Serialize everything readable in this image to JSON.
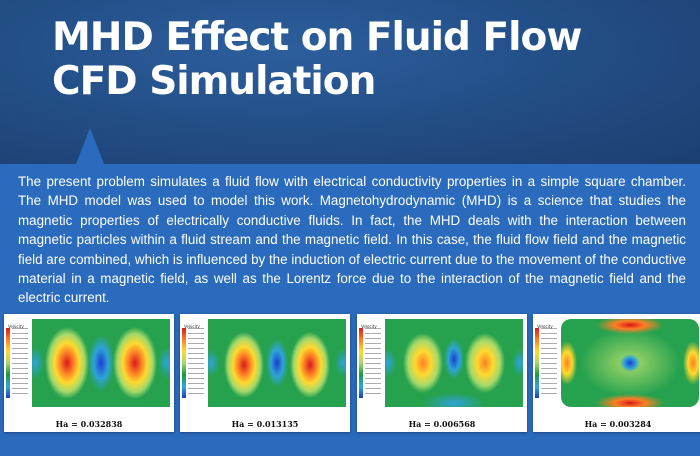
{
  "header": {
    "title_line1": "MHD Effect on Fluid Flow",
    "title_line2": "CFD Simulation"
  },
  "description": "The present problem simulates a fluid flow with electrical conductivity properties in a simple square chamber. The MHD model was used to model this work. Magnetohydrodynamic (MHD) is a science that studies the magnetic properties of electrically conductive fluids. In fact, the MHD deals with the interaction between magnetic particles within a fluid stream and the magnetic field. In this case, the fluid flow field and the magnetic field are combined, which is influenced by the induction of electric current due to the movement of the conductive material in a magnetic field, as well as the Lorentz force due to the interaction of the magnetic field and the electric current.",
  "colors": {
    "header_bg": "#234f88",
    "band_bg": "#2a6bbd",
    "title_text": "#ffffff"
  },
  "gallery": {
    "panels": [
      {
        "legend_title": "Velocity",
        "caption": "Ha = 0.032838"
      },
      {
        "legend_title": "Velocity",
        "caption": "Ha = 0.013135"
      },
      {
        "legend_title": "Velocity",
        "caption": "Ha = 0.006568"
      },
      {
        "legend_title": "Velocity",
        "caption": "Ha = 0.003284"
      }
    ]
  }
}
